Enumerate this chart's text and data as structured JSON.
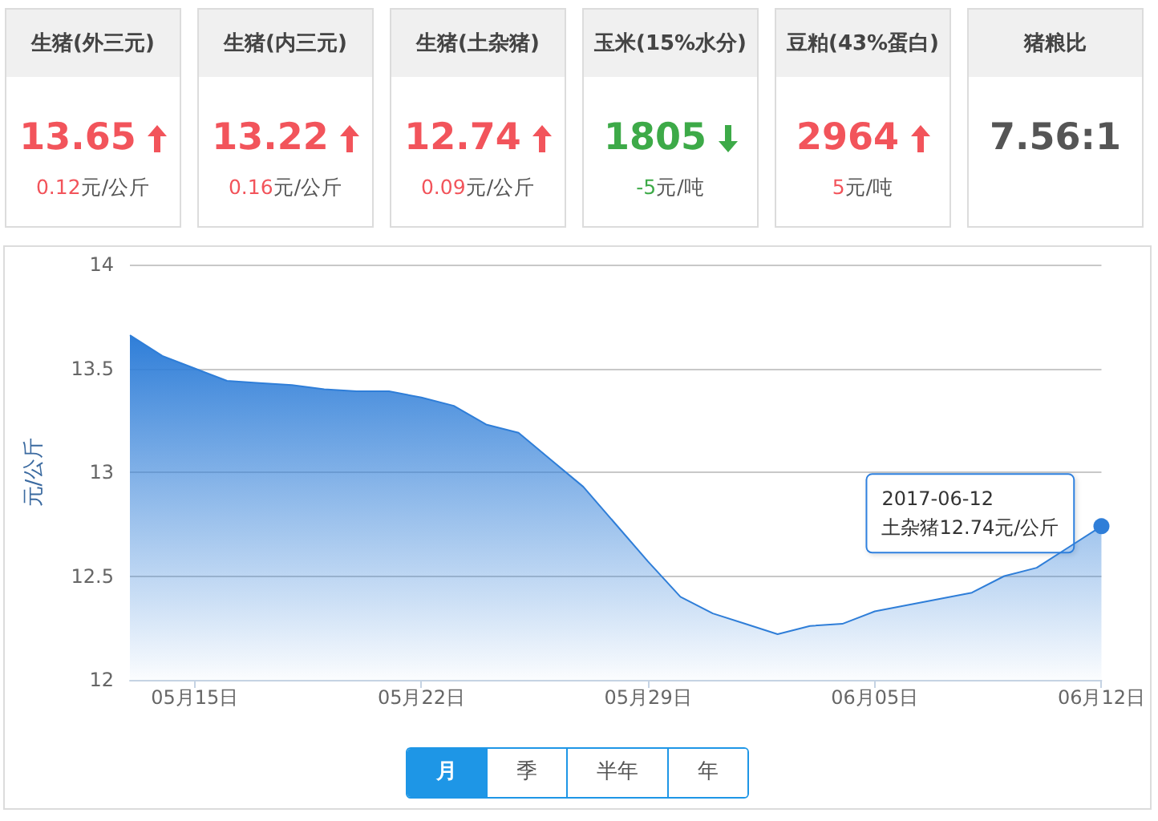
{
  "chart_data": [
    {
      "type": "other",
      "title": "生猪(外三元)",
      "values": [
        13.65,
        0.12
      ],
      "data_labels": true,
      "annotations": [
        "元/公斤"
      ],
      "color": "#f2545b"
    },
    {
      "type": "other",
      "title": "生猪(内三元)",
      "values": [
        13.22,
        0.16
      ],
      "data_labels": true,
      "annotations": [
        "元/公斤"
      ],
      "color": "#f2545b"
    },
    {
      "type": "other",
      "title": "生猪(土杂猪)",
      "values": [
        12.74,
        0.09
      ],
      "data_labels": true,
      "annotations": [
        "元/公斤"
      ],
      "color": "#f2545b"
    },
    {
      "type": "other",
      "title": "玉米(15%水分)",
      "values": [
        1805,
        -5
      ],
      "data_labels": true,
      "annotations": [
        "元/吨"
      ],
      "color": "#3daa48"
    },
    {
      "type": "other",
      "title": "豆粕(43%蛋白)",
      "values": [
        2964,
        5
      ],
      "data_labels": true,
      "annotations": [
        "元/吨"
      ],
      "color": "#f2545b"
    },
    {
      "type": "other",
      "title": "猪粮比",
      "annotations": [
        "7.56:1"
      ]
    },
    {
      "type": "area",
      "ylabel": "元/公斤",
      "categories": [
        null,
        null,
        "05月15日",
        null,
        null,
        null,
        null,
        null,
        null,
        "05月22日",
        null,
        null,
        null,
        null,
        null,
        null,
        "05月29日",
        null,
        null,
        null,
        null,
        null,
        null,
        "06月05日",
        null,
        null,
        null,
        null,
        null,
        null,
        "06月12日"
      ],
      "values": [
        13.66,
        13.56,
        13.5,
        13.44,
        13.43,
        13.42,
        13.4,
        13.39,
        13.39,
        13.36,
        13.32,
        13.23,
        13.19,
        13.06,
        12.93,
        12.75,
        12.57,
        12.4,
        12.32,
        12.27,
        12.22,
        12.26,
        12.27,
        12.33,
        12.36,
        12.39,
        12.42,
        12.5,
        12.54,
        12.64,
        12.74
      ],
      "color": "#2f7ed8",
      "ylim": [
        12,
        14
      ],
      "yticks": [
        12,
        12.5,
        13,
        13.5,
        14
      ],
      "grid": "y",
      "annotations": [
        {
          "text": "2017-06-12\n土杂猪12.74元/公斤",
          "x": "06月12日",
          "y": 12.74
        },
        "月",
        "季",
        "半年",
        "年"
      ]
    }
  ]
}
